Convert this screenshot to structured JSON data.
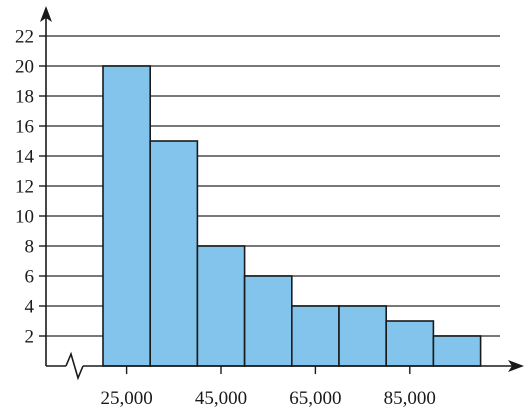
{
  "chart_data": {
    "type": "bar",
    "title": "",
    "xlabel": "",
    "ylabel": "",
    "ylim": [
      0,
      22
    ],
    "y_ticks": [
      2,
      4,
      6,
      8,
      10,
      12,
      14,
      16,
      18,
      20,
      22
    ],
    "x_tick_labels": [
      "25,000",
      "45,000",
      "65,000",
      "85,000"
    ],
    "x_tick_values": [
      25000,
      45000,
      65000,
      85000
    ],
    "bins": [
      {
        "start": 20000,
        "end": 30000,
        "value": 20
      },
      {
        "start": 30000,
        "end": 40000,
        "value": 15
      },
      {
        "start": 40000,
        "end": 50000,
        "value": 8
      },
      {
        "start": 50000,
        "end": 60000,
        "value": 6
      },
      {
        "start": 60000,
        "end": 70000,
        "value": 4
      },
      {
        "start": 70000,
        "end": 80000,
        "value": 4
      },
      {
        "start": 80000,
        "end": 90000,
        "value": 3
      },
      {
        "start": 90000,
        "end": 100000,
        "value": 2
      }
    ],
    "grid": true,
    "x_axis_break": true,
    "colors": {
      "bar_fill": "#82c4ec",
      "bar_stroke": "#1a1a1a",
      "grid": "#4d4d4d"
    }
  }
}
